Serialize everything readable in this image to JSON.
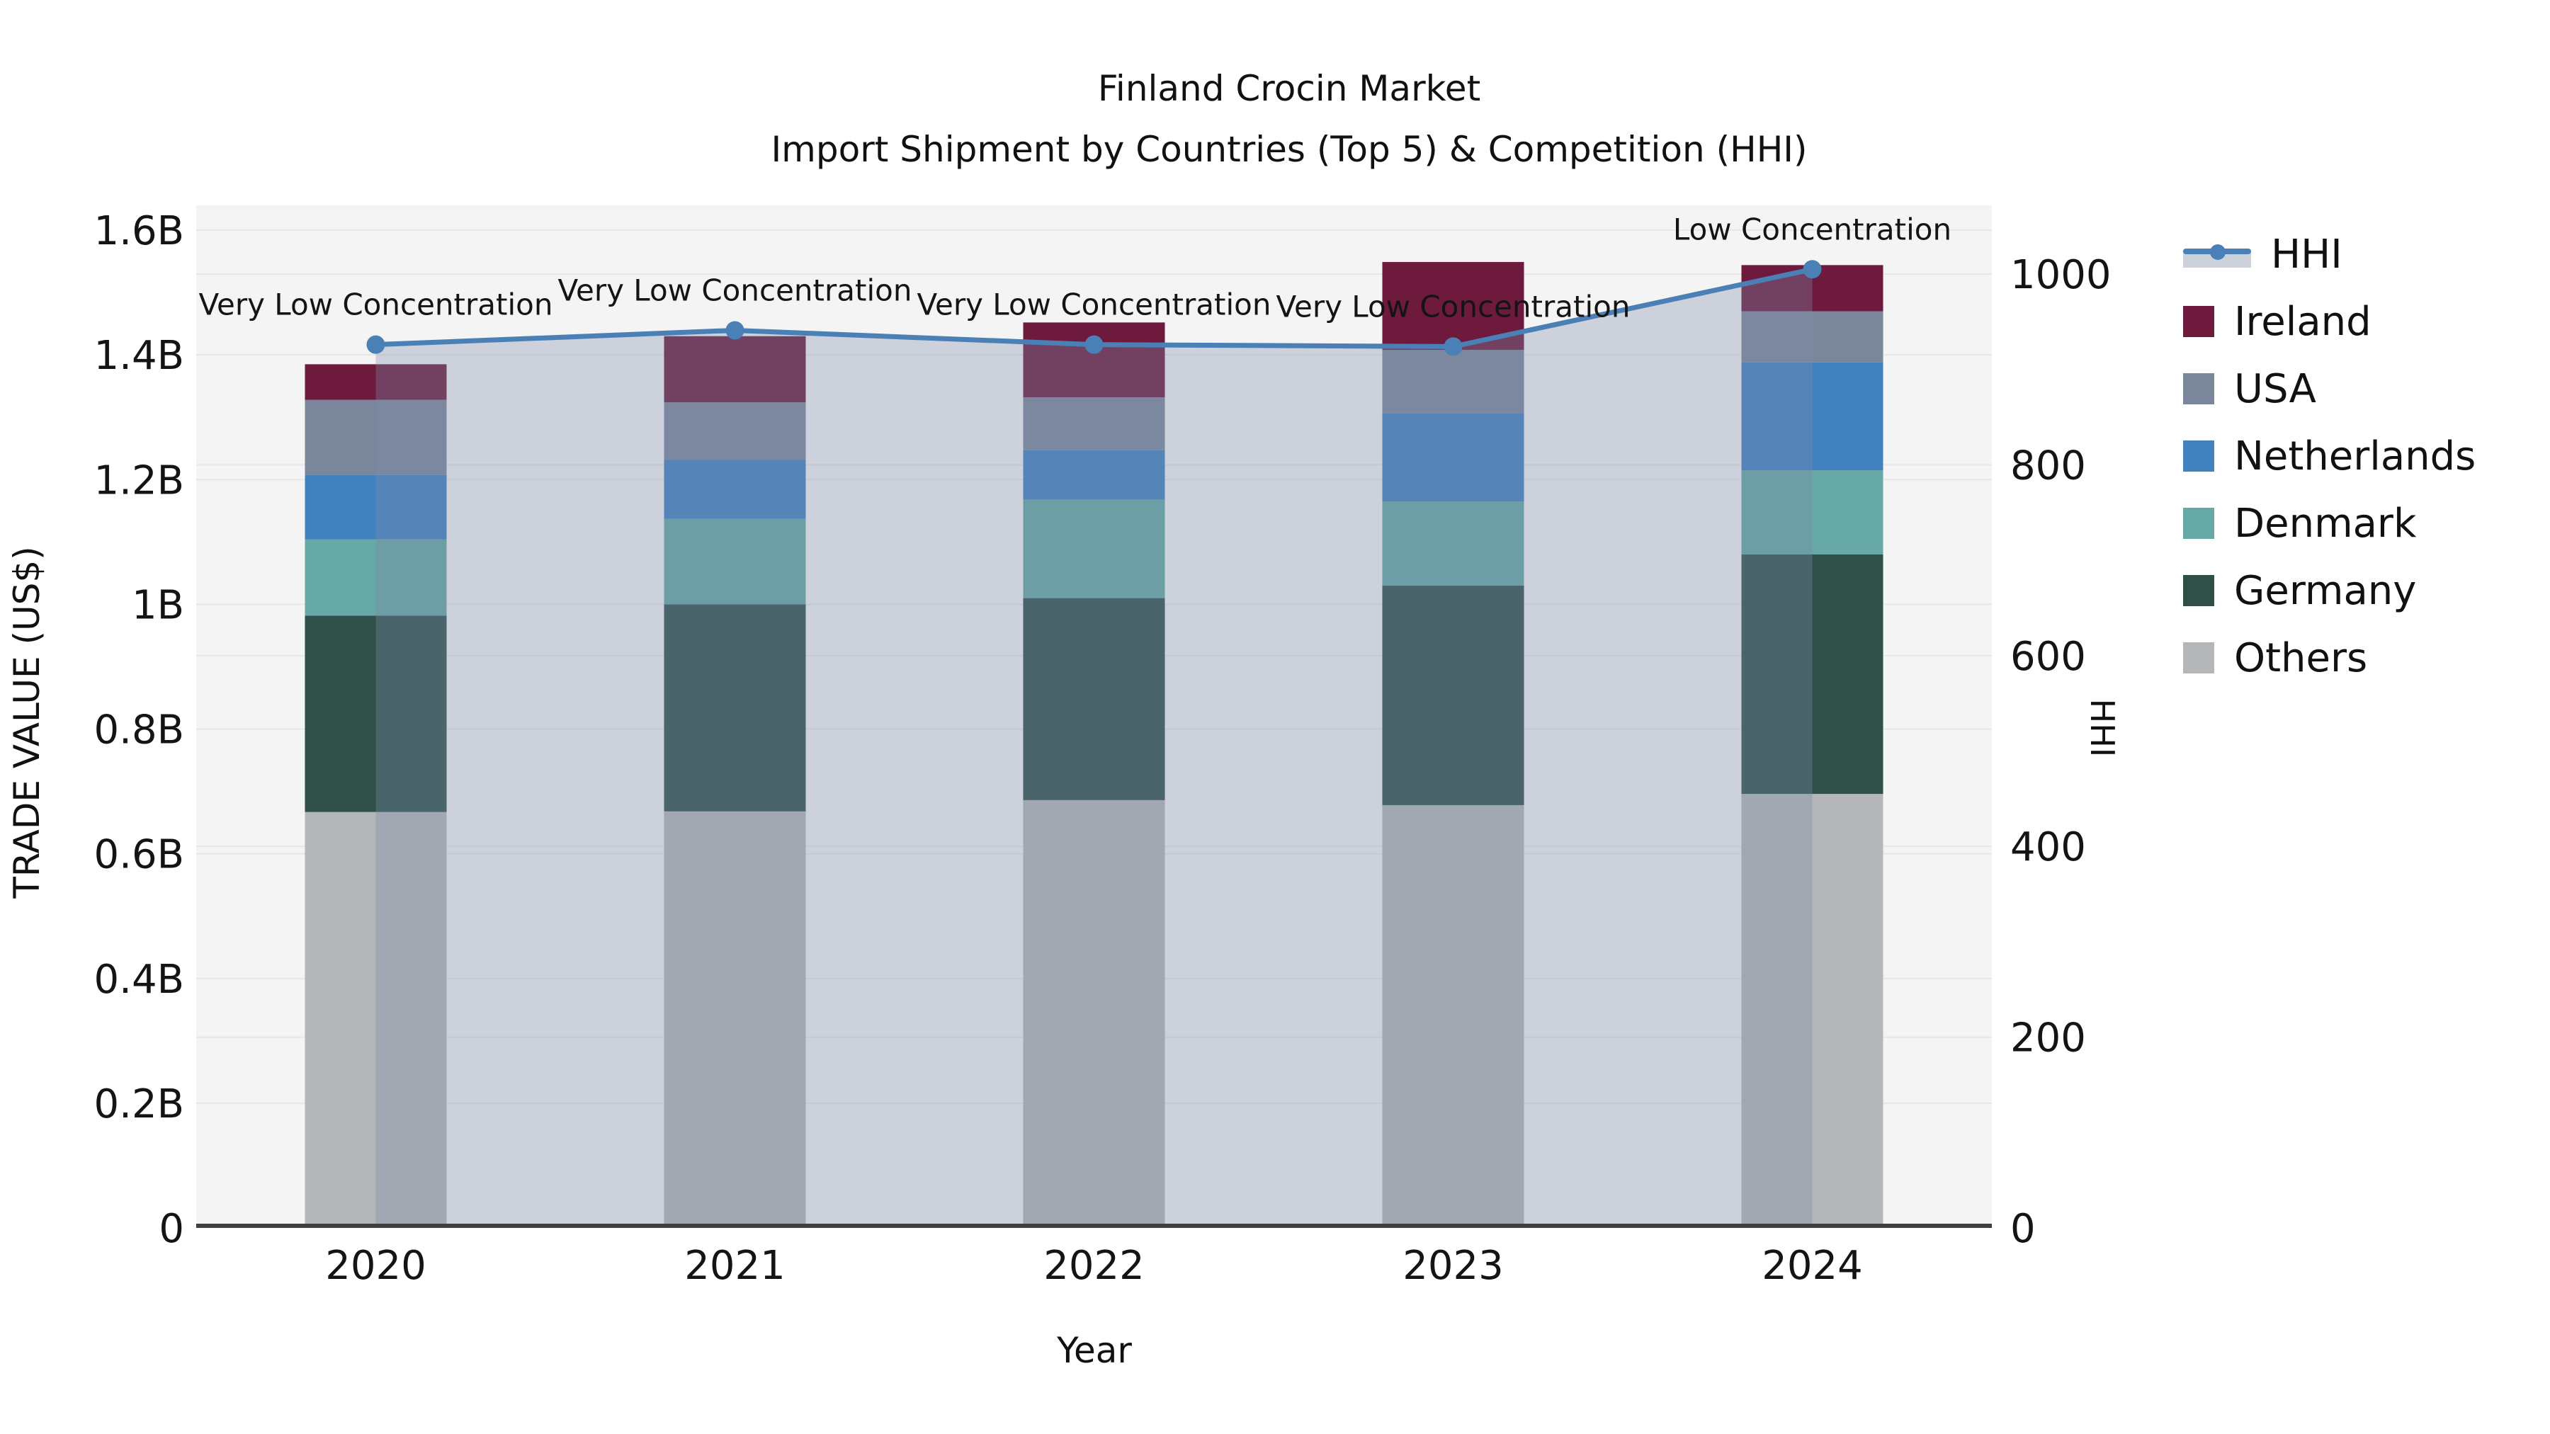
{
  "title": {
    "line1": "Finland Crocin Market",
    "line2": "Import Shipment by Countries (Top 5) & Competition (HHI)"
  },
  "axes": {
    "x": {
      "label": "Year"
    },
    "y_left": {
      "label": "TRADE VALUE (US$)",
      "ticks": [
        "0",
        "0.2B",
        "0.4B",
        "0.6B",
        "0.8B",
        "1B",
        "1.2B",
        "1.4B",
        "1.6B"
      ],
      "tick_values": [
        0,
        0.2,
        0.4,
        0.6,
        0.8,
        1.0,
        1.2,
        1.4,
        1.6
      ]
    },
    "y_right": {
      "label": "HHI",
      "ticks": [
        "0",
        "200",
        "400",
        "600",
        "800",
        "1000"
      ],
      "tick_values": [
        0,
        200,
        400,
        600,
        800,
        1000
      ]
    }
  },
  "legend": [
    {
      "label": "HHI",
      "type": "line",
      "color": "#4a80b5"
    },
    {
      "label": "Ireland",
      "type": "swatch",
      "color": "#6d1a3d"
    },
    {
      "label": "USA",
      "type": "swatch",
      "color": "#7a8699"
    },
    {
      "label": "Netherlands",
      "type": "swatch",
      "color": "#4181bf"
    },
    {
      "label": "Denmark",
      "type": "swatch",
      "color": "#65a8a5"
    },
    {
      "label": "Germany",
      "type": "swatch",
      "color": "#2e5049"
    },
    {
      "label": "Others",
      "type": "swatch",
      "color": "#b4b6b7"
    }
  ],
  "colors": {
    "plot_bg": "#f4f4f5",
    "gridline": "#e7e7e9",
    "axis_line": "#3f3f3f",
    "hhi_line": "#4a80b5",
    "hhi_fill": "rgba(125,140,170,0.34)",
    "text": "#141414"
  },
  "chart_data": {
    "type": "bar",
    "subtype": "stacked-bars-with-line-overlay",
    "title": "Finland Crocin Market — Import Shipment by Countries (Top 5) & Competition (HHI)",
    "xlabel": "Year",
    "ylabel_left": "TRADE VALUE (US$)",
    "ylabel_right": "HHI",
    "categories": [
      "2020",
      "2021",
      "2022",
      "2023",
      "2024"
    ],
    "unit": "billion US$",
    "stack_order_bottom_to_top": [
      "Others",
      "Germany",
      "Denmark",
      "Netherlands",
      "USA",
      "Ireland"
    ],
    "series": [
      {
        "name": "Others",
        "color": "#b4b6b7",
        "values": [
          0.667,
          0.668,
          0.686,
          0.678,
          0.696
        ]
      },
      {
        "name": "Germany",
        "color": "#2e5049",
        "values": [
          0.315,
          0.332,
          0.324,
          0.352,
          0.384
        ]
      },
      {
        "name": "Denmark",
        "color": "#65a8a5",
        "values": [
          0.122,
          0.137,
          0.158,
          0.135,
          0.135
        ]
      },
      {
        "name": "Netherlands",
        "color": "#4181bf",
        "values": [
          0.104,
          0.095,
          0.079,
          0.141,
          0.173
        ]
      },
      {
        "name": "USA",
        "color": "#7a8699",
        "values": [
          0.12,
          0.092,
          0.085,
          0.102,
          0.082
        ]
      },
      {
        "name": "Ireland",
        "color": "#6d1a3d",
        "values": [
          0.057,
          0.106,
          0.12,
          0.141,
          0.074
        ]
      }
    ],
    "bar_totals": [
      1.385,
      1.43,
      1.452,
      1.549,
      1.544
    ],
    "line": {
      "name": "HHI",
      "axis": "right",
      "color": "#4a80b5",
      "fill": "rgba(125,140,170,0.34)",
      "values": [
        926,
        941,
        926,
        924,
        1005
      ]
    },
    "annotations": [
      "Very Low Concentration",
      "Very Low Concentration",
      "Very Low Concentration",
      "Very Low Concentration",
      "Low Concentration"
    ],
    "ylim_left": [
      0,
      1.6
    ],
    "ylim_right": [
      0,
      1072
    ],
    "grid": true,
    "legend_position": "right"
  }
}
